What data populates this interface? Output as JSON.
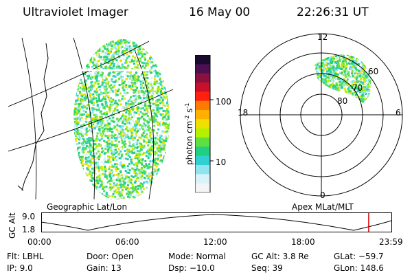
{
  "header": {
    "instrument": "Ultraviolet Imager",
    "date": "16 May 00",
    "time": "22:26:31 UT"
  },
  "geo_panel": {
    "label": "Geographic Lat/Lon"
  },
  "polar_panel": {
    "label": "Apex MLat/MLT",
    "mlt_labels": {
      "top": "12",
      "left": "18",
      "right": "6",
      "bottom": "0"
    },
    "lat_labels": [
      "60",
      "70",
      "80"
    ]
  },
  "colorbar": {
    "unit_label": "photon cm^-2 s^-1",
    "unit_base": "photon cm",
    "unit_exp1": "-2",
    "unit_mid": "s",
    "unit_exp2": "-1",
    "tick_labels": [
      "100",
      "10"
    ],
    "colors": [
      "#1a0a2e",
      "#4b0f52",
      "#8a1040",
      "#c8102a",
      "#ff2010",
      "#ff7a00",
      "#ffb000",
      "#f0e000",
      "#b4f000",
      "#60e040",
      "#20d080",
      "#30d0d0",
      "#90e4f0",
      "#d8f2f8",
      "#f4f4f4"
    ]
  },
  "timeline": {
    "ylabel": "GC Alt",
    "y_ticks": [
      "9.0",
      "1.8"
    ],
    "x_ticks": [
      "00:00",
      "06:00",
      "12:00",
      "18:00",
      "23:59"
    ],
    "current_time_hours": 22.44,
    "current_marker_color": "#e00000"
  },
  "info": {
    "flt": "Flt: LBHL",
    "ip": "IP:  9.0",
    "door": "Door: Open",
    "gain": "Gain: 13",
    "mode": "Mode: Normal",
    "dsp": "Dsp:  −10.0",
    "gc_alt": "GC Alt: 3.8 Re",
    "seq": "Seq: 39",
    "glat": "GLat: −59.7",
    "glon": "GLon: 148.6"
  }
}
